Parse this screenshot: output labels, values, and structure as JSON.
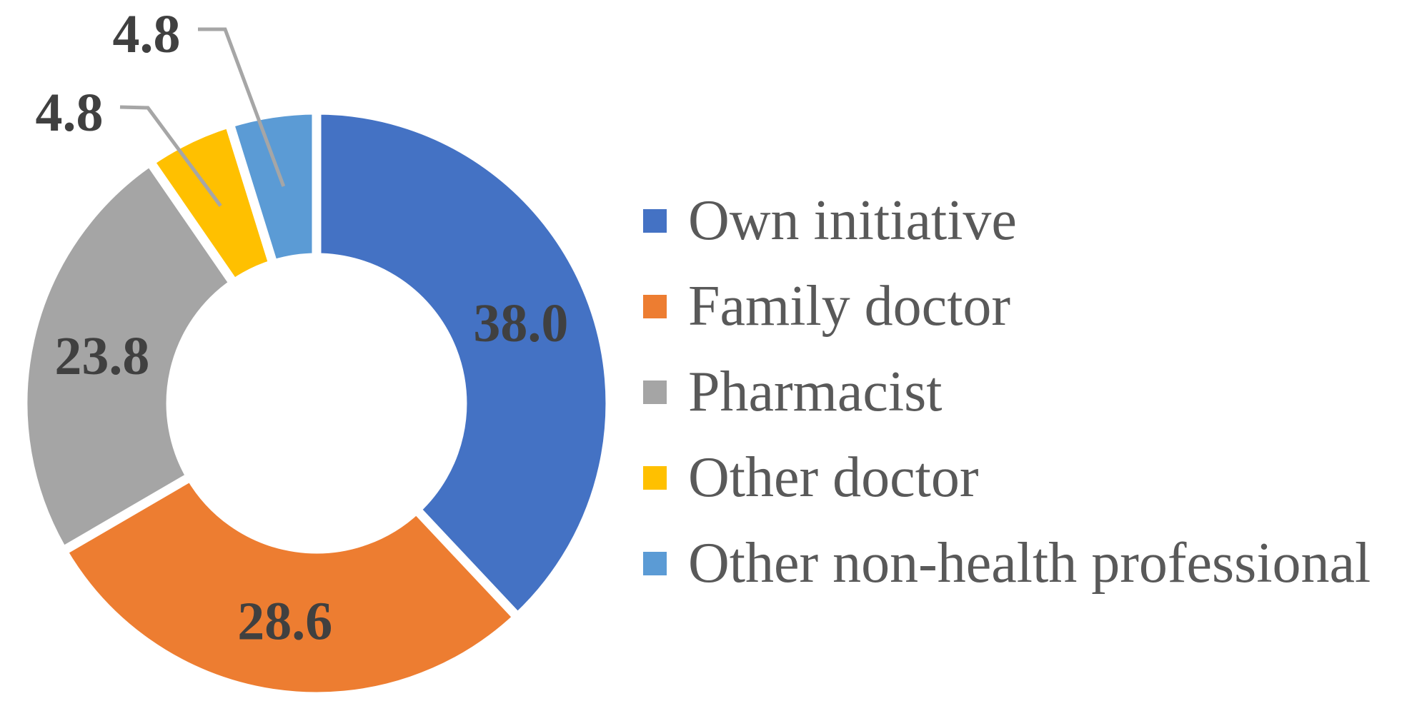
{
  "figure": {
    "background_color": "#FFFFFF"
  },
  "chart_data": {
    "type": "pie",
    "variant": "donut",
    "title": "",
    "start_angle_deg": 0,
    "direction": "clockwise",
    "donut_hole_ratio": 0.5,
    "grid": false,
    "legend_position": "right",
    "categories": [
      "Own initiative",
      "Family doctor",
      "Pharmacist",
      "Other doctor",
      "Other non-health professional"
    ],
    "values": [
      38.0,
      28.6,
      23.8,
      4.8,
      4.8
    ],
    "value_labels": [
      "38.0",
      "28.6",
      "23.8",
      "4.8",
      "4.8"
    ],
    "colors": [
      "#4472C4",
      "#ED7D31",
      "#A5A5A5",
      "#FFC000",
      "#5B9BD5"
    ],
    "styles": {
      "slice_border_color": "#FFFFFF",
      "data_label_color": "#404040",
      "legend_text_color": "#595959",
      "leader_line_color": "#A6A6A6"
    }
  }
}
